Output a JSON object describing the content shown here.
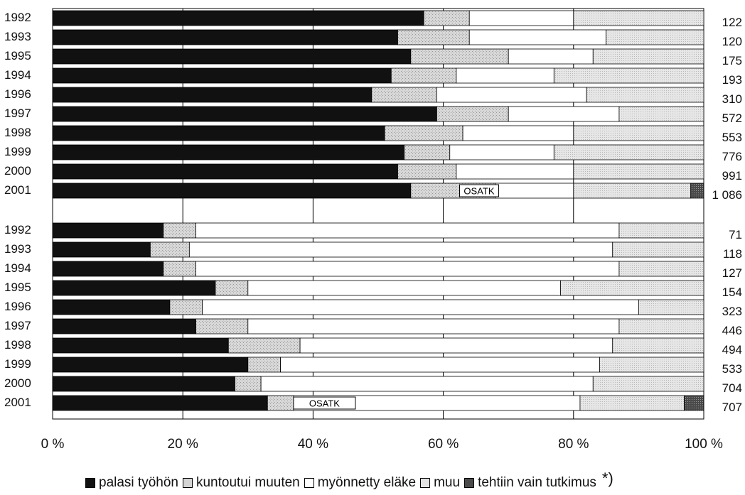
{
  "chart_data": {
    "type": "bar",
    "stacked_percent": true,
    "orientation": "horizontal",
    "xlim": [
      0,
      100
    ],
    "x_ticks": [
      "0 %",
      "20 %",
      "40 %",
      "60 %",
      "80 %",
      "100 %"
    ],
    "grid": true,
    "legend_position": "bottom",
    "series": [
      {
        "name": "palasi työhön",
        "color": "#111111"
      },
      {
        "name": "kuntoutui muuten",
        "color": "#d4d4d4"
      },
      {
        "name": "myönnetty eläke",
        "color": "#ffffff"
      },
      {
        "name": "muu",
        "color": "#e2e2e2"
      },
      {
        "name": "tehtiin vain tutkimus",
        "color": "#555555"
      }
    ],
    "legend_note": "*)",
    "annotation_label": "OSATK",
    "groups": [
      {
        "rows": [
          {
            "year": "1992",
            "n": "122",
            "values": [
              57,
              7,
              16,
              20,
              0
            ]
          },
          {
            "year": "1993",
            "n": "120",
            "values": [
              53,
              11,
              21,
              15,
              0
            ]
          },
          {
            "year": "1995",
            "n": "175",
            "values": [
              55,
              15,
              13,
              17,
              0
            ]
          },
          {
            "year": "1994",
            "n": "193",
            "values": [
              52,
              10,
              15,
              23,
              0
            ]
          },
          {
            "year": "1996",
            "n": "310",
            "values": [
              49,
              10,
              23,
              18,
              0
            ]
          },
          {
            "year": "1997",
            "n": "572",
            "values": [
              59,
              11,
              17,
              13,
              0
            ]
          },
          {
            "year": "1998",
            "n": "553",
            "values": [
              51,
              12,
              17,
              20,
              0
            ]
          },
          {
            "year": "1999",
            "n": "776",
            "values": [
              54,
              7,
              16,
              23,
              0
            ]
          },
          {
            "year": "2000",
            "n": "991",
            "values": [
              53,
              9,
              18,
              20,
              0
            ]
          },
          {
            "year": "2001",
            "n": "1 086",
            "values": [
              55,
              13,
              12,
              18,
              2
            ],
            "osatk_from": 62.5,
            "osatk_to": 68.5
          }
        ]
      },
      {
        "rows": [
          {
            "year": "1992",
            "n": "71",
            "values": [
              17,
              5,
              65,
              13,
              0
            ]
          },
          {
            "year": "1993",
            "n": "118",
            "values": [
              15,
              6,
              65,
              14,
              0
            ]
          },
          {
            "year": "1994",
            "n": "127",
            "values": [
              17,
              5,
              65,
              13,
              0
            ]
          },
          {
            "year": "1995",
            "n": "154",
            "values": [
              25,
              5,
              48,
              22,
              0
            ]
          },
          {
            "year": "1996",
            "n": "323",
            "values": [
              18,
              5,
              67,
              10,
              0
            ]
          },
          {
            "year": "1997",
            "n": "446",
            "values": [
              22,
              8,
              57,
              13,
              0
            ]
          },
          {
            "year": "1998",
            "n": "494",
            "values": [
              27,
              11,
              48,
              14,
              0
            ]
          },
          {
            "year": "1999",
            "n": "533",
            "values": [
              30,
              5,
              49,
              16,
              0
            ]
          },
          {
            "year": "2000",
            "n": "704",
            "values": [
              28,
              4,
              51,
              17,
              0
            ]
          },
          {
            "year": "2001",
            "n": "707",
            "values": [
              33,
              4,
              44,
              16,
              3
            ],
            "osatk_from": 37,
            "osatk_to": 46.5
          }
        ]
      }
    ]
  }
}
